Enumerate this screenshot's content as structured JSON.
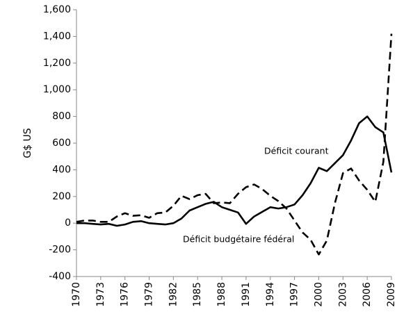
{
  "chart_data": {
    "type": "line",
    "y_label": "G$ US",
    "x": [
      1970,
      1971,
      1972,
      1973,
      1974,
      1975,
      1976,
      1977,
      1978,
      1979,
      1980,
      1981,
      1982,
      1983,
      1984,
      1985,
      1986,
      1987,
      1988,
      1989,
      1990,
      1991,
      1992,
      1993,
      1994,
      1995,
      1996,
      1997,
      1998,
      1999,
      2000,
      2001,
      2002,
      2003,
      2004,
      2005,
      2006,
      2007,
      2008,
      2009
    ],
    "series": [
      {
        "name": "Déficit courant",
        "color": "#000000",
        "dash": "solid",
        "values": [
          0,
          0,
          -5,
          -10,
          -5,
          -20,
          -10,
          10,
          15,
          0,
          -5,
          -10,
          0,
          35,
          95,
          120,
          145,
          160,
          120,
          100,
          80,
          -5,
          50,
          85,
          120,
          110,
          120,
          140,
          210,
          300,
          415,
          390,
          450,
          510,
          620,
          750,
          800,
          720,
          680,
          380
        ]
      },
      {
        "name": "Déficit budgétaire fédéral",
        "color": "#000000",
        "dash": "dashed",
        "values": [
          10,
          20,
          20,
          10,
          10,
          50,
          75,
          55,
          60,
          40,
          75,
          80,
          130,
          205,
          180,
          210,
          220,
          150,
          155,
          150,
          220,
          270,
          290,
          255,
          205,
          165,
          110,
          20,
          -70,
          -125,
          -235,
          -130,
          150,
          375,
          410,
          320,
          250,
          160,
          460,
          1420
        ]
      }
    ],
    "xlim": [
      1970,
      2009
    ],
    "xticks": [
      1970,
      1973,
      1976,
      1979,
      1982,
      1985,
      1988,
      1991,
      1994,
      1997,
      2000,
      2003,
      2006,
      2009
    ],
    "ylim": [
      -400,
      1600
    ],
    "yticks": [
      -400,
      -200,
      0,
      200,
      400,
      600,
      800,
      {
        "value": 1000,
        "label": "1,000"
      },
      {
        "value": 1200,
        "label": "1,200"
      },
      {
        "value": 1400,
        "label": "1,400"
      },
      {
        "value": 1600,
        "label": "1,600"
      }
    ],
    "grid": false
  }
}
